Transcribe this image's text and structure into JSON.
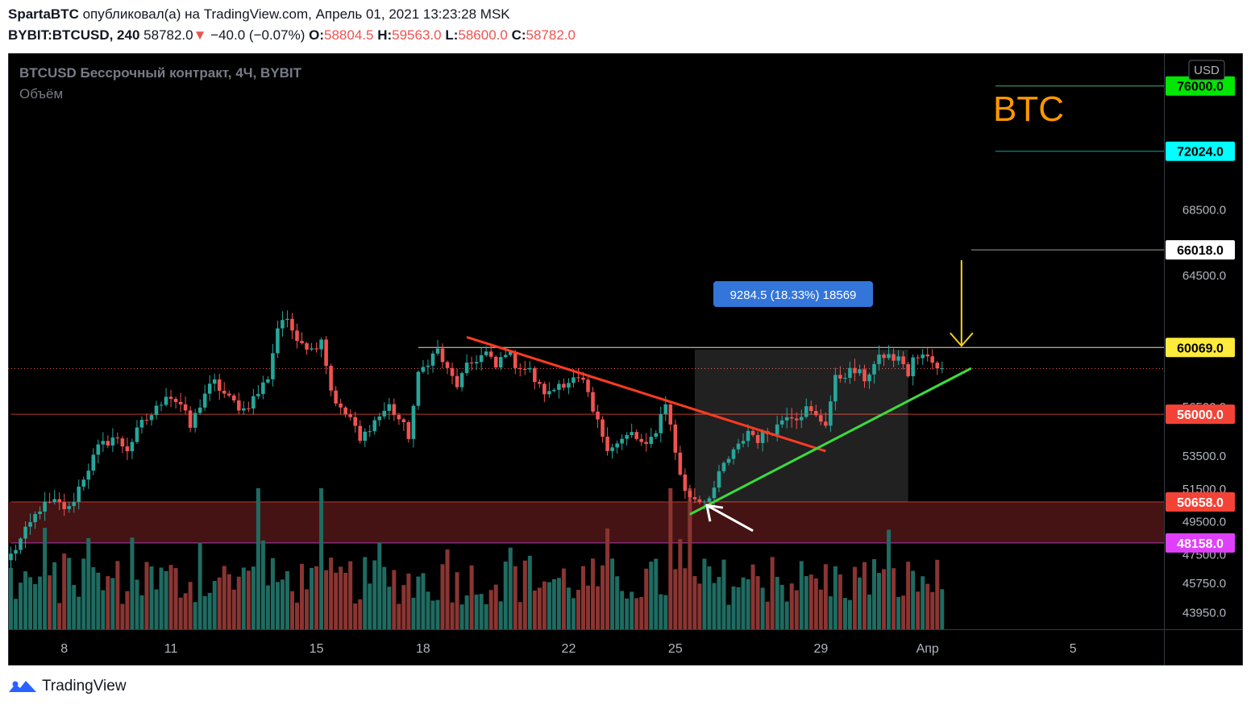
{
  "header": {
    "author": "SpartaBTC",
    "published_text": "опубликовал(а) на TradingView.com, Апрель 01, 2021 13:23:28 MSK",
    "symbol": "BYBIT:BTCUSD, 240",
    "last": "58782.0",
    "change": "−40.0 (−0.07%)",
    "open_label": "O:",
    "open": "58804.5",
    "high_label": "H:",
    "high": "59563.0",
    "low_label": "L:",
    "low": "58600.0",
    "close_label": "C:",
    "close": "58782.0"
  },
  "chart_header": {
    "instrument": "BTCUSD Бессрочный контракт, 4Ч, BYBIT",
    "volume_label": "Объём"
  },
  "annotation": {
    "btc_text": "BTC",
    "measure_text": "9284.5 (18.33%) 18569",
    "currency": "USD"
  },
  "footer": {
    "brand": "TradingView"
  },
  "colors": {
    "up": "#26a69a",
    "down": "#ef5350",
    "up_vol": "#1f6b61",
    "down_vol": "#8a3532",
    "resistance_line": "#ff3b22",
    "support_line": "#3cdc3c",
    "arrow_yellow": "#f5d21a",
    "btc_text": "#ff9800",
    "zone": "#4d1515",
    "measure_box": "#3375d8"
  },
  "chart_data": {
    "type": "candlestick",
    "title": "BTCUSD Бессрочный контракт, 4Ч, BYBIT",
    "ylim": [
      42900,
      78000
    ],
    "y_ticks": [
      43950,
      45750,
      47500,
      49500,
      51500,
      53500,
      56500,
      60000,
      64500,
      68500,
      72000
    ],
    "y_tick_labels": [
      "43950.0",
      "45750.0",
      "47500.0",
      "49500.0",
      "51500.0",
      "53500.0",
      "56500.0",
      "60000.0",
      "64500.0",
      "68500.0",
      "72000.0"
    ],
    "x_ticks": [
      {
        "label": "8",
        "bar": 11
      },
      {
        "label": "11",
        "bar": 33
      },
      {
        "label": "15",
        "bar": 63
      },
      {
        "label": "18",
        "bar": 85
      },
      {
        "label": "22",
        "bar": 115
      },
      {
        "label": "25",
        "bar": 137
      },
      {
        "label": "29",
        "bar": 167
      },
      {
        "label": "Апр",
        "bar": 189
      },
      {
        "label": "5",
        "bar": 219
      }
    ],
    "bars_total": 238,
    "price_levels": [
      {
        "value": 76000,
        "label": "76000.0",
        "bg": "#00e600",
        "fg": "#000000",
        "line": "#3fae7a",
        "from_bar": 203
      },
      {
        "value": 72024,
        "label": "72024.0",
        "bg": "#00ffff",
        "fg": "#000000",
        "line": "#1aa0a0",
        "from_bar": 203
      },
      {
        "value": 66018,
        "label": "66018.0",
        "bg": "#ffffff",
        "fg": "#000000",
        "line": "#9e9e9e",
        "from_bar": 198
      },
      {
        "value": 60069,
        "label": "60069.0",
        "bg": "#ffeb3b",
        "fg": "#000000",
        "line": "#e8e2b8",
        "from_bar": 84
      },
      {
        "value": 56000,
        "label": "56000.0",
        "bg": "#f44336",
        "fg": "#ffffff",
        "line": "#c0392b",
        "from_bar": 0
      },
      {
        "value": 50658,
        "label": "50658.0",
        "bg": "#f44336",
        "fg": "#ffffff",
        "line": "#c0392b",
        "from_bar": 0
      },
      {
        "value": 48158,
        "label": "48158.0",
        "bg": "#e040fb",
        "fg": "#ffffff",
        "line": "#b23ab8",
        "from_bar": 0
      }
    ],
    "zone": {
      "low": 48158,
      "high": 50658
    },
    "last_price": 58782,
    "measure_box": {
      "from_bar": 141,
      "to_bar": 185,
      "low": 50658,
      "high": 59942
    },
    "trend_lines": [
      {
        "name": "resistance",
        "x1": 94,
        "y1": 60700,
        "x2": 168,
        "y2": 53750
      },
      {
        "name": "support",
        "x1": 140,
        "y1": 49900,
        "x2": 198,
        "y2": 58800
      }
    ],
    "waypoints": [
      [
        0,
        47400
      ],
      [
        3,
        48800
      ],
      [
        6,
        50300
      ],
      [
        9,
        50600
      ],
      [
        12,
        50200
      ],
      [
        15,
        52200
      ],
      [
        18,
        53900
      ],
      [
        21,
        54600
      ],
      [
        24,
        53900
      ],
      [
        27,
        55400
      ],
      [
        30,
        56300
      ],
      [
        32,
        57300
      ],
      [
        35,
        56600
      ],
      [
        37,
        55200
      ],
      [
        40,
        57300
      ],
      [
        42,
        57900
      ],
      [
        45,
        56900
      ],
      [
        48,
        56300
      ],
      [
        51,
        57300
      ],
      [
        53,
        58300
      ],
      [
        55,
        61300
      ],
      [
        56,
        61800
      ],
      [
        57,
        61500
      ],
      [
        59,
        60800
      ],
      [
        62,
        59900
      ],
      [
        64,
        60700
      ],
      [
        66,
        57500
      ],
      [
        68,
        56200
      ],
      [
        70,
        55800
      ],
      [
        72,
        54300
      ],
      [
        74,
        55300
      ],
      [
        76,
        55900
      ],
      [
        78,
        56500
      ],
      [
        80,
        55700
      ],
      [
        82,
        54700
      ],
      [
        84,
        58300
      ],
      [
        86,
        59300
      ],
      [
        88,
        59900
      ],
      [
        90,
        58600
      ],
      [
        92,
        57800
      ],
      [
        94,
        58800
      ],
      [
        96,
        59400
      ],
      [
        98,
        59700
      ],
      [
        100,
        58800
      ],
      [
        102,
        59900
      ],
      [
        104,
        59100
      ],
      [
        107,
        58600
      ],
      [
        109,
        57600
      ],
      [
        111,
        57200
      ],
      [
        113,
        57900
      ],
      [
        116,
        58100
      ],
      [
        118,
        57900
      ],
      [
        120,
        56100
      ],
      [
        123,
        54100
      ],
      [
        125,
        54200
      ],
      [
        128,
        54800
      ],
      [
        131,
        53900
      ],
      [
        133,
        55100
      ],
      [
        135,
        56800
      ],
      [
        137,
        53700
      ],
      [
        139,
        51200
      ],
      [
        141,
        50900
      ],
      [
        143,
        50800
      ],
      [
        145,
        51500
      ],
      [
        147,
        52900
      ],
      [
        150,
        54000
      ],
      [
        152,
        55000
      ],
      [
        154,
        54500
      ],
      [
        156,
        54900
      ],
      [
        158,
        55300
      ],
      [
        160,
        56100
      ],
      [
        162,
        55900
      ],
      [
        164,
        56300
      ],
      [
        166,
        55800
      ],
      [
        168,
        55500
      ],
      [
        170,
        58100
      ],
      [
        172,
        58500
      ],
      [
        174,
        58600
      ],
      [
        176,
        58200
      ],
      [
        178,
        59000
      ],
      [
        180,
        59600
      ],
      [
        182,
        59400
      ],
      [
        184,
        59200
      ],
      [
        185,
        58300
      ],
      [
        186,
        59300
      ],
      [
        188,
        59500
      ],
      [
        190,
        59300
      ],
      [
        192,
        58800
      ]
    ],
    "volume_scale_max": 100
  }
}
